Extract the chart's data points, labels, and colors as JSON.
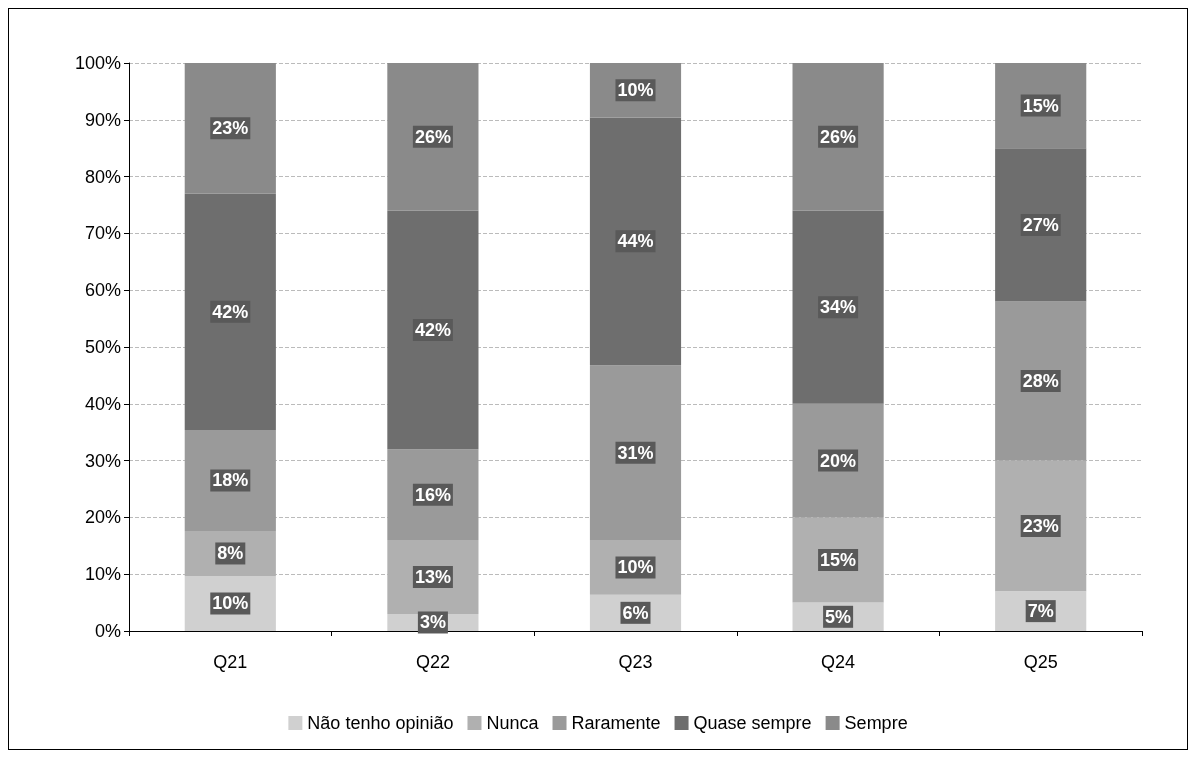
{
  "chart_data": {
    "type": "bar",
    "stacked": true,
    "categories": [
      "Q21",
      "Q22",
      "Q23",
      "Q24",
      "Q25"
    ],
    "series": [
      {
        "name": "Não tenho opinião",
        "color": "#d0d0d0",
        "values": [
          9.7,
          3,
          6.4,
          5,
          7
        ],
        "value_labels": [
          "10%",
          "3%",
          "6%",
          "5%",
          "7%"
        ]
      },
      {
        "name": "Nunca",
        "color": "#b0b0b0",
        "values": [
          7.9,
          13,
          9.6,
          15,
          23
        ],
        "value_labels": [
          "8%",
          "13%",
          "10%",
          "15%",
          "23%"
        ]
      },
      {
        "name": "Raramente",
        "color": "#9a9a9a",
        "values": [
          17.8,
          16,
          30.8,
          20,
          28
        ],
        "value_labels": [
          "18%",
          "16%",
          "31%",
          "20%",
          "28%"
        ]
      },
      {
        "name": "Quase sempre",
        "color": "#6e6e6e",
        "values": [
          41.6,
          42,
          43.6,
          34,
          27
        ],
        "value_labels": [
          "42%",
          "42%",
          "44%",
          "34%",
          "27%"
        ]
      },
      {
        "name": "Sempre",
        "color": "#8a8a8a",
        "values": [
          23,
          26,
          9.6,
          26,
          15
        ],
        "value_labels": [
          "23%",
          "26%",
          "10%",
          "26%",
          "15%"
        ]
      }
    ],
    "ylim": [
      0,
      100
    ],
    "yticks": [
      {
        "value": 0,
        "label": "0%"
      },
      {
        "value": 10,
        "label": "10%"
      },
      {
        "value": 20,
        "label": "20%"
      },
      {
        "value": 30,
        "label": "30%"
      },
      {
        "value": 40,
        "label": "40%"
      },
      {
        "value": 50,
        "label": "50%"
      },
      {
        "value": 60,
        "label": "60%"
      },
      {
        "value": 70,
        "label": "70%"
      },
      {
        "value": 80,
        "label": "80%"
      },
      {
        "value": 90,
        "label": "90%"
      },
      {
        "value": 100,
        "label": "100%"
      }
    ],
    "grid": "y",
    "legend": "bottom"
  }
}
